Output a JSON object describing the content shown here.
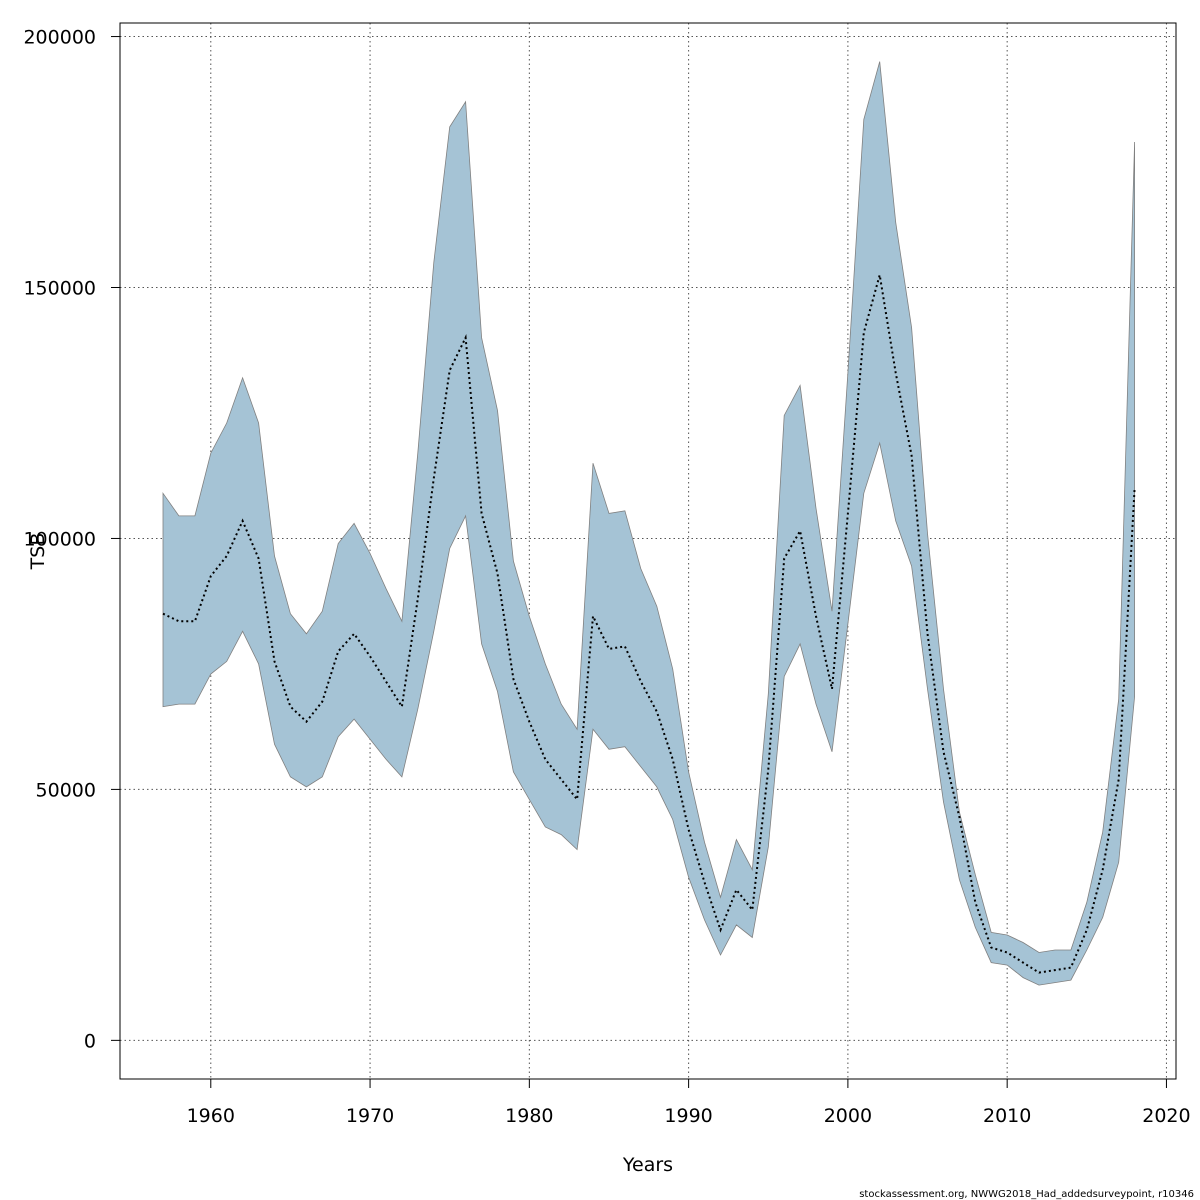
{
  "chart_data": {
    "type": "area",
    "title": "",
    "xlabel": "Years",
    "ylabel": "TSB",
    "xlim": [
      1954.3,
      2020.6
    ],
    "ylim": [
      -7700,
      202700
    ],
    "grid": true,
    "x_ticks": [
      1960,
      1970,
      1980,
      1990,
      2000,
      2010,
      2020
    ],
    "x_tick_labels": [
      "1960",
      "1970",
      "1980",
      "1990",
      "2000",
      "2010",
      "2020"
    ],
    "y_ticks": [
      0,
      50000,
      100000,
      150000,
      200000
    ],
    "y_tick_labels": [
      "0",
      "50000",
      "100000",
      "150000",
      "200000"
    ],
    "band_color": "#a5c3d5",
    "band_edge_color": "#808080",
    "line_color": "#000000",
    "x": [
      1957,
      1958,
      1959,
      1960,
      1961,
      1962,
      1963,
      1964,
      1965,
      1966,
      1967,
      1968,
      1969,
      1970,
      1971,
      1972,
      1973,
      1974,
      1975,
      1976,
      1977,
      1978,
      1979,
      1980,
      1981,
      1982,
      1983,
      1984,
      1985,
      1986,
      1987,
      1988,
      1989,
      1990,
      1991,
      1992,
      1993,
      1994,
      1995,
      1996,
      1997,
      1998,
      1999,
      2000,
      2001,
      2002,
      2003,
      2004,
      2005,
      2006,
      2007,
      2008,
      2009,
      2010,
      2011,
      2012,
      2013,
      2014,
      2015,
      2016,
      2017,
      2018
    ],
    "series": [
      {
        "name": "TSB",
        "values": [
          85000,
          83500,
          83500,
          92500,
          96500,
          103500,
          96000,
          75500,
          66500,
          63500,
          67500,
          77500,
          81000,
          76500,
          71500,
          66500,
          88000,
          112000,
          133500,
          140000,
          105000,
          93000,
          72000,
          63500,
          56000,
          52000,
          48000,
          84500,
          78000,
          78500,
          71500,
          65500,
          56000,
          42000,
          31500,
          22000,
          30000,
          26000,
          54000,
          96000,
          101500,
          84500,
          70000,
          105000,
          141000,
          152500,
          133000,
          116500,
          81000,
          57500,
          44500,
          27500,
          18500,
          17500,
          15500,
          13500,
          14000,
          14500,
          22000,
          34000,
          52000,
          110000
        ]
      },
      {
        "name": "upper",
        "values": [
          109000,
          104500,
          104500,
          117000,
          123000,
          132000,
          123000,
          96500,
          85000,
          81000,
          85500,
          99000,
          103000,
          97000,
          90000,
          83500,
          117000,
          155000,
          182000,
          187000,
          140000,
          125500,
          95500,
          84500,
          75000,
          67000,
          62000,
          115000,
          105000,
          105500,
          94000,
          86500,
          74000,
          53500,
          39500,
          28500,
          40000,
          34000,
          69000,
          124500,
          130500,
          106000,
          85500,
          133000,
          183500,
          195000,
          163000,
          142000,
          101000,
          70000,
          45500,
          33000,
          21500,
          21000,
          19500,
          17500,
          18000,
          18000,
          27500,
          41500,
          68000,
          179000
        ]
      },
      {
        "name": "lower",
        "values": [
          66500,
          67000,
          67000,
          73000,
          75500,
          81500,
          75000,
          59000,
          52500,
          50500,
          52500,
          60500,
          64000,
          60000,
          56000,
          52500,
          66000,
          81500,
          98000,
          104500,
          79000,
          69500,
          53500,
          48000,
          42500,
          41000,
          38000,
          62000,
          58000,
          58500,
          54500,
          50500,
          44000,
          32500,
          24000,
          17000,
          23000,
          20500,
          38500,
          72500,
          79000,
          67000,
          57500,
          83000,
          109000,
          119000,
          103500,
          94500,
          70000,
          47500,
          32000,
          22500,
          15500,
          15000,
          12500,
          11000,
          11500,
          12000,
          18000,
          24500,
          35500,
          68500
        ]
      }
    ]
  },
  "footer_text": "stockassessment.org, NWWG2018_Had_addedsurveypoint, r10346"
}
